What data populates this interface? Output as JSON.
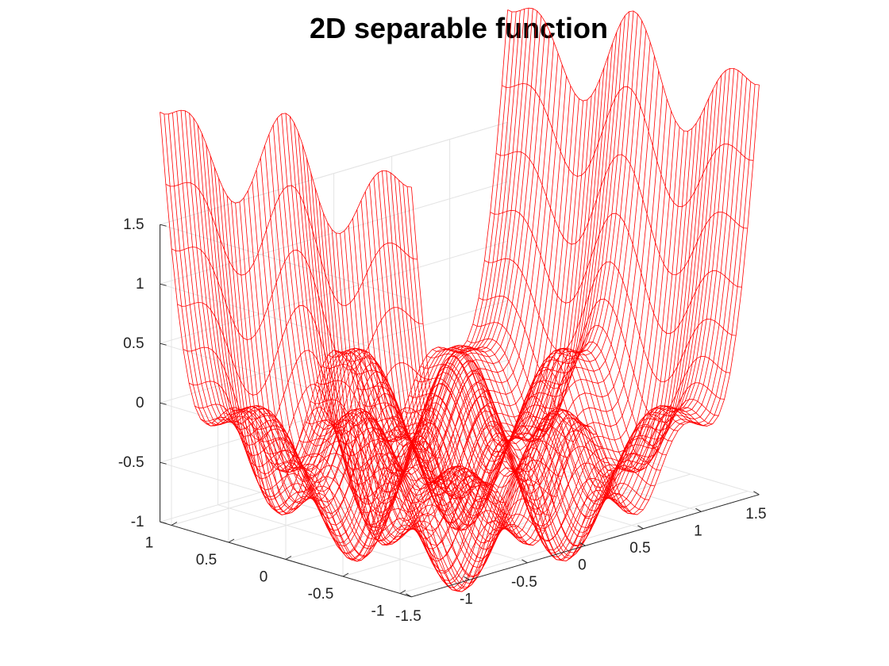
{
  "chart_data": {
    "type": "surface",
    "title": "2D separable function",
    "function": "z = g(x) + g(y) with g(t) = t^4 - 1.05*t^2 + 0.36*cos(7.5*t) - 0.2",
    "x_range": [
      -1.5,
      1.5
    ],
    "y_range": [
      -1.1,
      1.1
    ],
    "zlim": [
      -1,
      1.5
    ],
    "xticks": [
      -1.5,
      -1,
      -0.5,
      0,
      0.5,
      1,
      1.5
    ],
    "yticks": [
      -1,
      -0.5,
      0,
      0.5,
      1
    ],
    "zticks": [
      -1,
      -0.5,
      0,
      0.5,
      1,
      1.5
    ],
    "xtick_labels": [
      "-1.5",
      "-1",
      "-0.5",
      "0",
      "0.5",
      "1",
      "1.5"
    ],
    "ytick_labels": [
      "-1",
      "-0.5",
      "0",
      "0.5",
      "1"
    ],
    "ztick_labels": [
      "-1",
      "-0.5",
      "0",
      "0.5",
      "1",
      "1.5"
    ],
    "xlabel": "",
    "ylabel": "",
    "zlabel": "",
    "grid": true,
    "mesh_color": "#ff0000",
    "mesh_resolution": 61
  }
}
